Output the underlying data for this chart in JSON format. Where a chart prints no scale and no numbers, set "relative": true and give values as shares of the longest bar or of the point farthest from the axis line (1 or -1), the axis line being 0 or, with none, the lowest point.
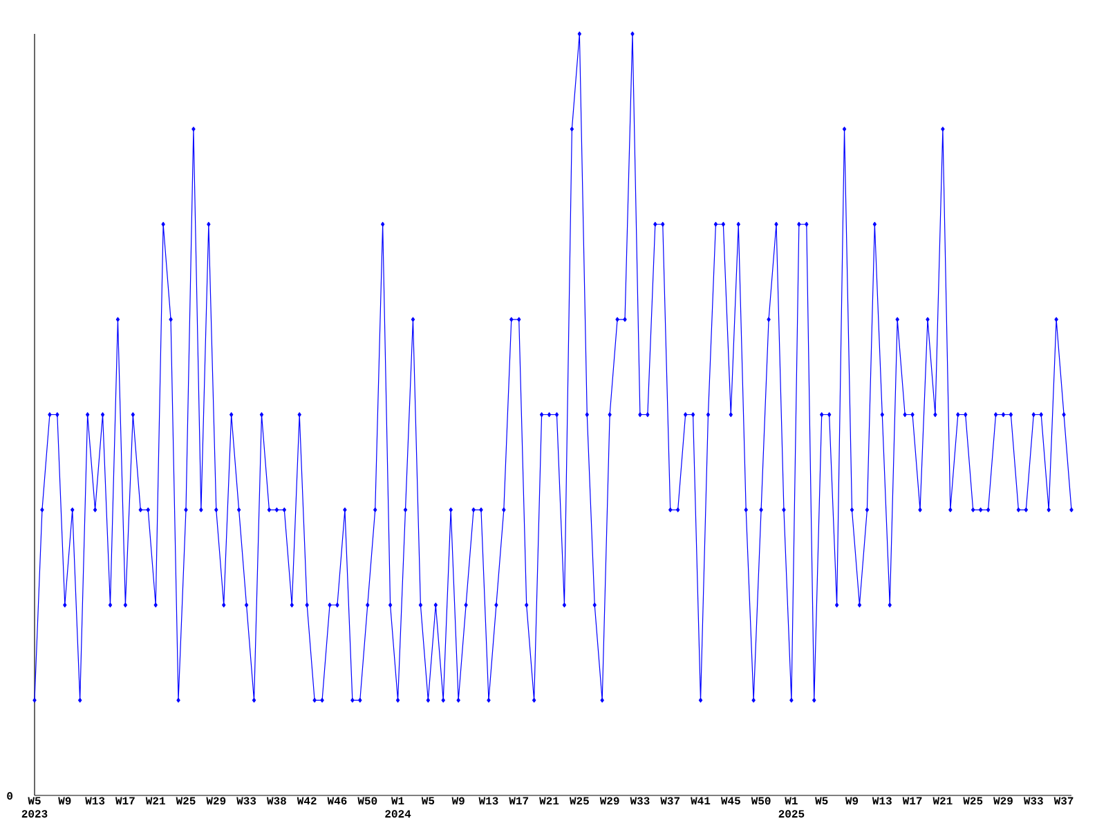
{
  "chart_data": {
    "type": "line",
    "relative": true,
    "color": "#0000ff",
    "marker": "diamond",
    "line_style": "solid",
    "annotations": [
      "0"
    ],
    "categories": [
      "W5 2023",
      null,
      null,
      null,
      "W9",
      null,
      null,
      null,
      "W13",
      null,
      null,
      null,
      "W17",
      null,
      null,
      null,
      "W21",
      null,
      null,
      null,
      "W25",
      null,
      null,
      null,
      "W29",
      null,
      null,
      null,
      "W33",
      null,
      null,
      null,
      "W38",
      null,
      null,
      null,
      "W42",
      null,
      null,
      null,
      "W46",
      null,
      null,
      null,
      "W50",
      null,
      null,
      null,
      "W1 2024",
      null,
      null,
      null,
      "W5",
      null,
      null,
      null,
      "W9",
      null,
      null,
      null,
      "W13",
      null,
      null,
      null,
      "W17",
      null,
      null,
      null,
      "W21",
      null,
      null,
      null,
      "W25",
      null,
      null,
      null,
      "W29",
      null,
      null,
      null,
      "W33",
      null,
      null,
      null,
      "W37",
      null,
      null,
      null,
      "W41",
      null,
      null,
      null,
      "W45",
      null,
      null,
      null,
      "W50",
      null,
      null,
      null,
      "W1 2025",
      null,
      null,
      null,
      "W5",
      null,
      null,
      null,
      "W9",
      null,
      null,
      null,
      "W13",
      null,
      null,
      null,
      "W17",
      null,
      null,
      null,
      "W21",
      null,
      null,
      null,
      "W25",
      null,
      null,
      null,
      "W29",
      null,
      null,
      null,
      "W33",
      null,
      null,
      null,
      "W37",
      null
    ],
    "values": [
      0.125,
      0.375,
      0.5,
      0.5,
      0.25,
      0.375,
      0.125,
      0.5,
      0.375,
      0.5,
      0.25,
      0.625,
      0.25,
      0.5,
      0.375,
      0.375,
      0.25,
      0.75,
      0.625,
      0.125,
      0.375,
      0.875,
      0.375,
      0.75,
      0.375,
      0.25,
      0.5,
      0.375,
      0.25,
      0.125,
      0.5,
      0.375,
      0.375,
      0.375,
      0.25,
      0.5,
      0.25,
      0.125,
      0.125,
      0.25,
      0.25,
      0.375,
      0.125,
      0.125,
      0.25,
      0.375,
      0.75,
      0.25,
      0.125,
      0.375,
      0.625,
      0.25,
      0.125,
      0.25,
      0.125,
      0.375,
      0.125,
      0.25,
      0.375,
      0.375,
      0.125,
      0.25,
      0.375,
      0.625,
      0.625,
      0.25,
      0.125,
      0.5,
      0.5,
      0.5,
      0.25,
      0.875,
      1,
      0.5,
      0.25,
      0.125,
      0.5,
      0.625,
      0.625,
      1,
      0.5,
      0.5,
      0.75,
      0.75,
      0.375,
      0.375,
      0.5,
      0.5,
      0.125,
      0.5,
      0.75,
      0.75,
      0.5,
      0.75,
      0.375,
      0.125,
      0.375,
      0.625,
      0.75,
      0.375,
      0.125,
      0.75,
      0.75,
      0.125,
      0.5,
      0.5,
      0.25,
      0.875,
      0.375,
      0.25,
      0.375,
      0.75,
      0.5,
      0.25,
      0.625,
      0.5,
      0.5,
      0.375,
      0.625,
      0.5,
      0.875,
      0.375,
      0.5,
      0.5,
      0.375,
      0.375,
      0.375,
      0.5,
      0.5,
      0.5,
      0.375,
      0.375,
      0.5,
      0.5,
      0.375,
      0.625,
      0.5,
      0.375
    ]
  }
}
